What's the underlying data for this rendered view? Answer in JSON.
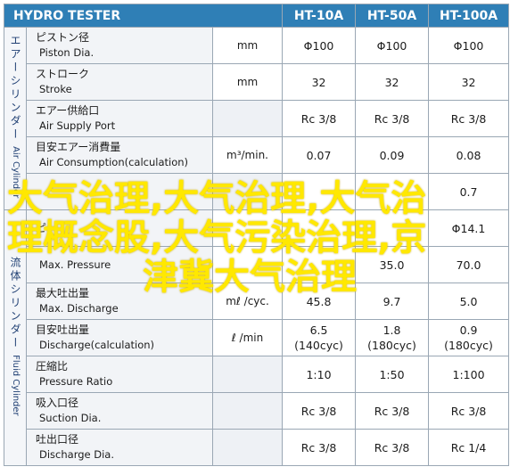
{
  "header": {
    "brand": "HYDRO TESTER",
    "models": [
      "HT-10A",
      "HT-50A",
      "HT-100A"
    ]
  },
  "sections": {
    "air": {
      "jp": "エアーシリンダー",
      "en": "Air Cylinder"
    },
    "fluid": {
      "jp": "流体シリンダー",
      "en": "Fluid Cylinder"
    }
  },
  "rows": [
    {
      "ja": "ピストン径",
      "en": "Piston Dia.",
      "unit": "mm",
      "v1": "Φ100",
      "v2": "Φ100",
      "v3": "Φ100"
    },
    {
      "ja": "ストローク",
      "en": "Stroke",
      "unit": "mm",
      "v1": "32",
      "v2": "32",
      "v3": "32"
    },
    {
      "ja": "エアー供給口",
      "en": "Air Supply Port",
      "unit": "",
      "v1": "Rc 3/8",
      "v2": "Rc 3/8",
      "v3": "Rc 3/8"
    },
    {
      "ja": "目安エアー消費量",
      "en": "Air Consumption(calculation)",
      "unit": "m³/min.",
      "v1": "0.07",
      "v2": "0.09",
      "v3": "0.08"
    },
    {
      "ja": "",
      "en": "",
      "unit": "",
      "v1": "",
      "v2": "",
      "v3": "0.7"
    },
    {
      "ja": "ピ",
      "en": "",
      "unit": "",
      "v1": "",
      "v2": "",
      "v3": "Φ14.1"
    },
    {
      "ja": "",
      "en": "Max. Pressure",
      "unit": "",
      "v1": "",
      "v2": "35.0",
      "v3": "70.0"
    },
    {
      "ja": "最大吐出量",
      "en": "Max. Discharge",
      "unit": "mℓ /cyc.",
      "v1": "45.8",
      "v2": "9.7",
      "v3": "5.0"
    },
    {
      "ja": "目安吐出量",
      "en": "Discharge(calculation)",
      "unit": "ℓ /min",
      "v1": "6.5",
      "v1b": "(140cyc)",
      "v2": "1.8",
      "v2b": "(180cyc)",
      "v3": "0.9",
      "v3b": "(180cyc)"
    },
    {
      "ja": "圧縮比",
      "en": "Pressure Ratio",
      "unit": "",
      "v1": "1:10",
      "v2": "1:50",
      "v3": "1:100"
    },
    {
      "ja": "吸入口径",
      "en": "Suction Dia.",
      "unit": "",
      "v1": "Rc 3/8",
      "v2": "Rc 3/8",
      "v3": "Rc 3/8"
    },
    {
      "ja": "吐出口径",
      "en": "Discharge Dia.",
      "unit": "",
      "v1": "Rc 3/8",
      "v2": "Rc 3/8",
      "v3": "Rc 1/4"
    }
  ],
  "overlay": {
    "line1": "大气治理,大气治理,大气治",
    "line2": "理概念股,大气污染治理,京",
    "line3": "津冀大气治理"
  }
}
